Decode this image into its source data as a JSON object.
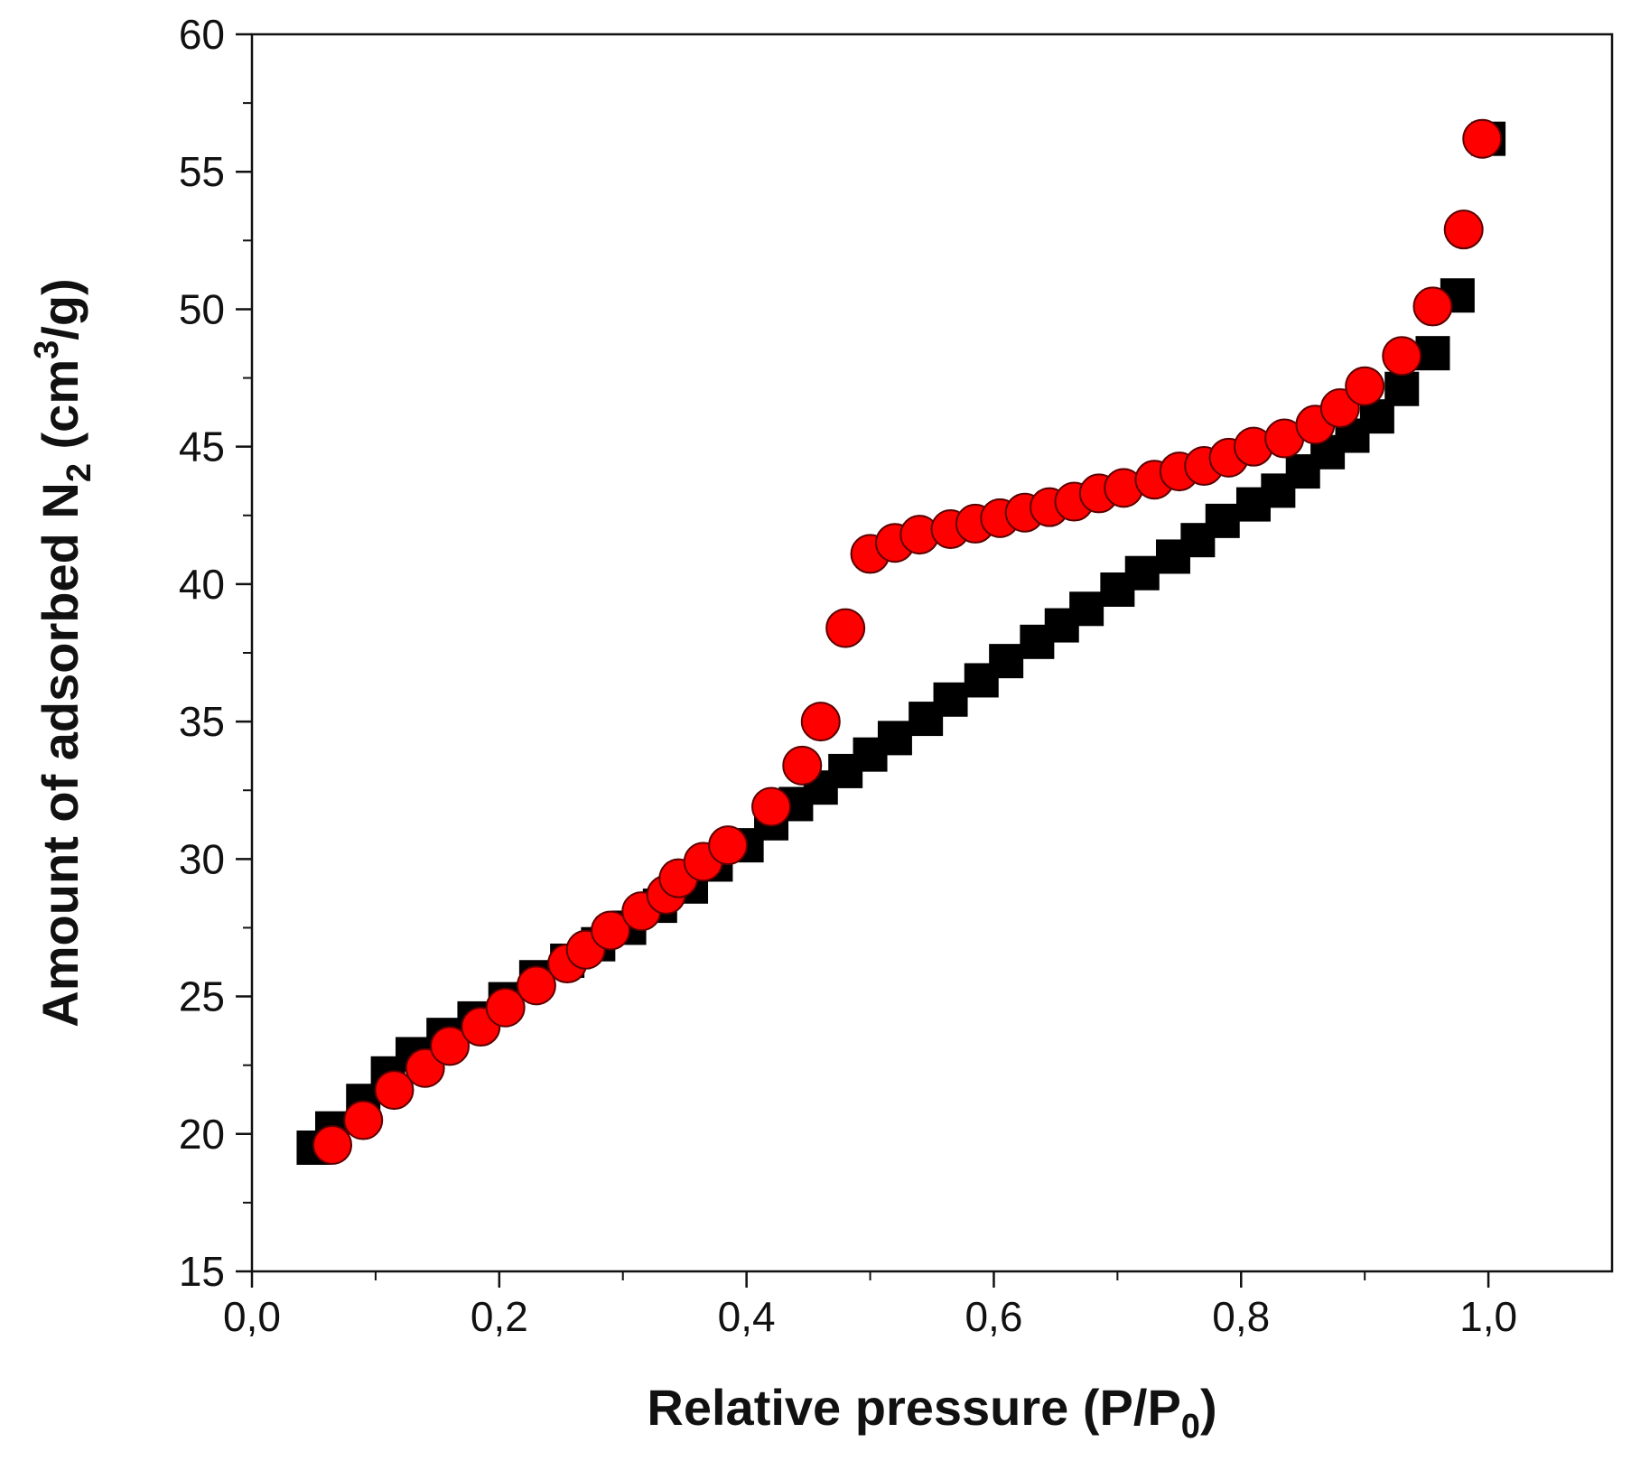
{
  "chart_data": {
    "type": "scatter",
    "title": "",
    "xlabel": {
      "main": "Relative pressure (P/P",
      "sub": "0",
      "end": ")"
    },
    "ylabel": {
      "main": "Amount of adsorbed N",
      "sub": "2",
      "mid": " (cm",
      "sup": "3",
      "end": "/g)"
    },
    "xlim": [
      0,
      1.1
    ],
    "ylim": [
      15,
      60
    ],
    "xticks": [
      0.0,
      0.2,
      0.4,
      0.6,
      0.8,
      1.0
    ],
    "xtick_labels": [
      "0,0",
      "0,2",
      "0,4",
      "0,6",
      "0,8",
      "1,0"
    ],
    "yticks": [
      15,
      20,
      25,
      30,
      35,
      40,
      45,
      50,
      55,
      60
    ],
    "ytick_labels": [
      "15",
      "20",
      "25",
      "30",
      "35",
      "40",
      "45",
      "50",
      "55",
      "60"
    ],
    "grid": false,
    "series": [
      {
        "marker": "square",
        "color": "#000000",
        "x": [
          0.05,
          0.065,
          0.09,
          0.11,
          0.13,
          0.155,
          0.18,
          0.205,
          0.23,
          0.255,
          0.28,
          0.305,
          0.33,
          0.355,
          0.375,
          0.4,
          0.42,
          0.44,
          0.46,
          0.48,
          0.5,
          0.52,
          0.545,
          0.565,
          0.59,
          0.61,
          0.635,
          0.655,
          0.675,
          0.7,
          0.72,
          0.745,
          0.765,
          0.785,
          0.81,
          0.83,
          0.85,
          0.87,
          0.89,
          0.91,
          0.93,
          0.955,
          0.975,
          1.0
        ],
        "y": [
          19.5,
          20.2,
          21.2,
          22.2,
          22.9,
          23.6,
          24.2,
          24.9,
          25.7,
          26.3,
          26.9,
          27.5,
          28.3,
          29.0,
          29.8,
          30.5,
          31.3,
          32.0,
          32.6,
          33.2,
          33.8,
          34.4,
          35.1,
          35.8,
          36.5,
          37.2,
          37.9,
          38.5,
          39.1,
          39.8,
          40.4,
          41.0,
          41.6,
          42.3,
          42.9,
          43.4,
          44.1,
          44.8,
          45.4,
          46.1,
          47.1,
          48.4,
          50.5,
          56.2
        ]
      },
      {
        "marker": "circle",
        "color": "#ff0000",
        "x": [
          0.065,
          0.09,
          0.115,
          0.14,
          0.16,
          0.185,
          0.205,
          0.23,
          0.255,
          0.27,
          0.29,
          0.315,
          0.335,
          0.345,
          0.365,
          0.385,
          0.42,
          0.445,
          0.46,
          0.48,
          0.5,
          0.52,
          0.54,
          0.565,
          0.585,
          0.605,
          0.625,
          0.645,
          0.665,
          0.685,
          0.705,
          0.73,
          0.75,
          0.77,
          0.79,
          0.81,
          0.835,
          0.86,
          0.88,
          0.9,
          0.93,
          0.955,
          0.98,
          0.995
        ],
        "y": [
          19.6,
          20.5,
          21.6,
          22.4,
          23.2,
          23.9,
          24.6,
          25.4,
          26.2,
          26.7,
          27.4,
          28.1,
          28.7,
          29.3,
          29.9,
          30.5,
          31.9,
          33.4,
          35.0,
          38.4,
          41.1,
          41.5,
          41.8,
          42.0,
          42.2,
          42.4,
          42.6,
          42.8,
          43.0,
          43.3,
          43.5,
          43.8,
          44.1,
          44.3,
          44.6,
          45.0,
          45.3,
          45.8,
          46.4,
          47.2,
          48.3,
          50.1,
          52.9,
          56.2
        ]
      }
    ]
  }
}
